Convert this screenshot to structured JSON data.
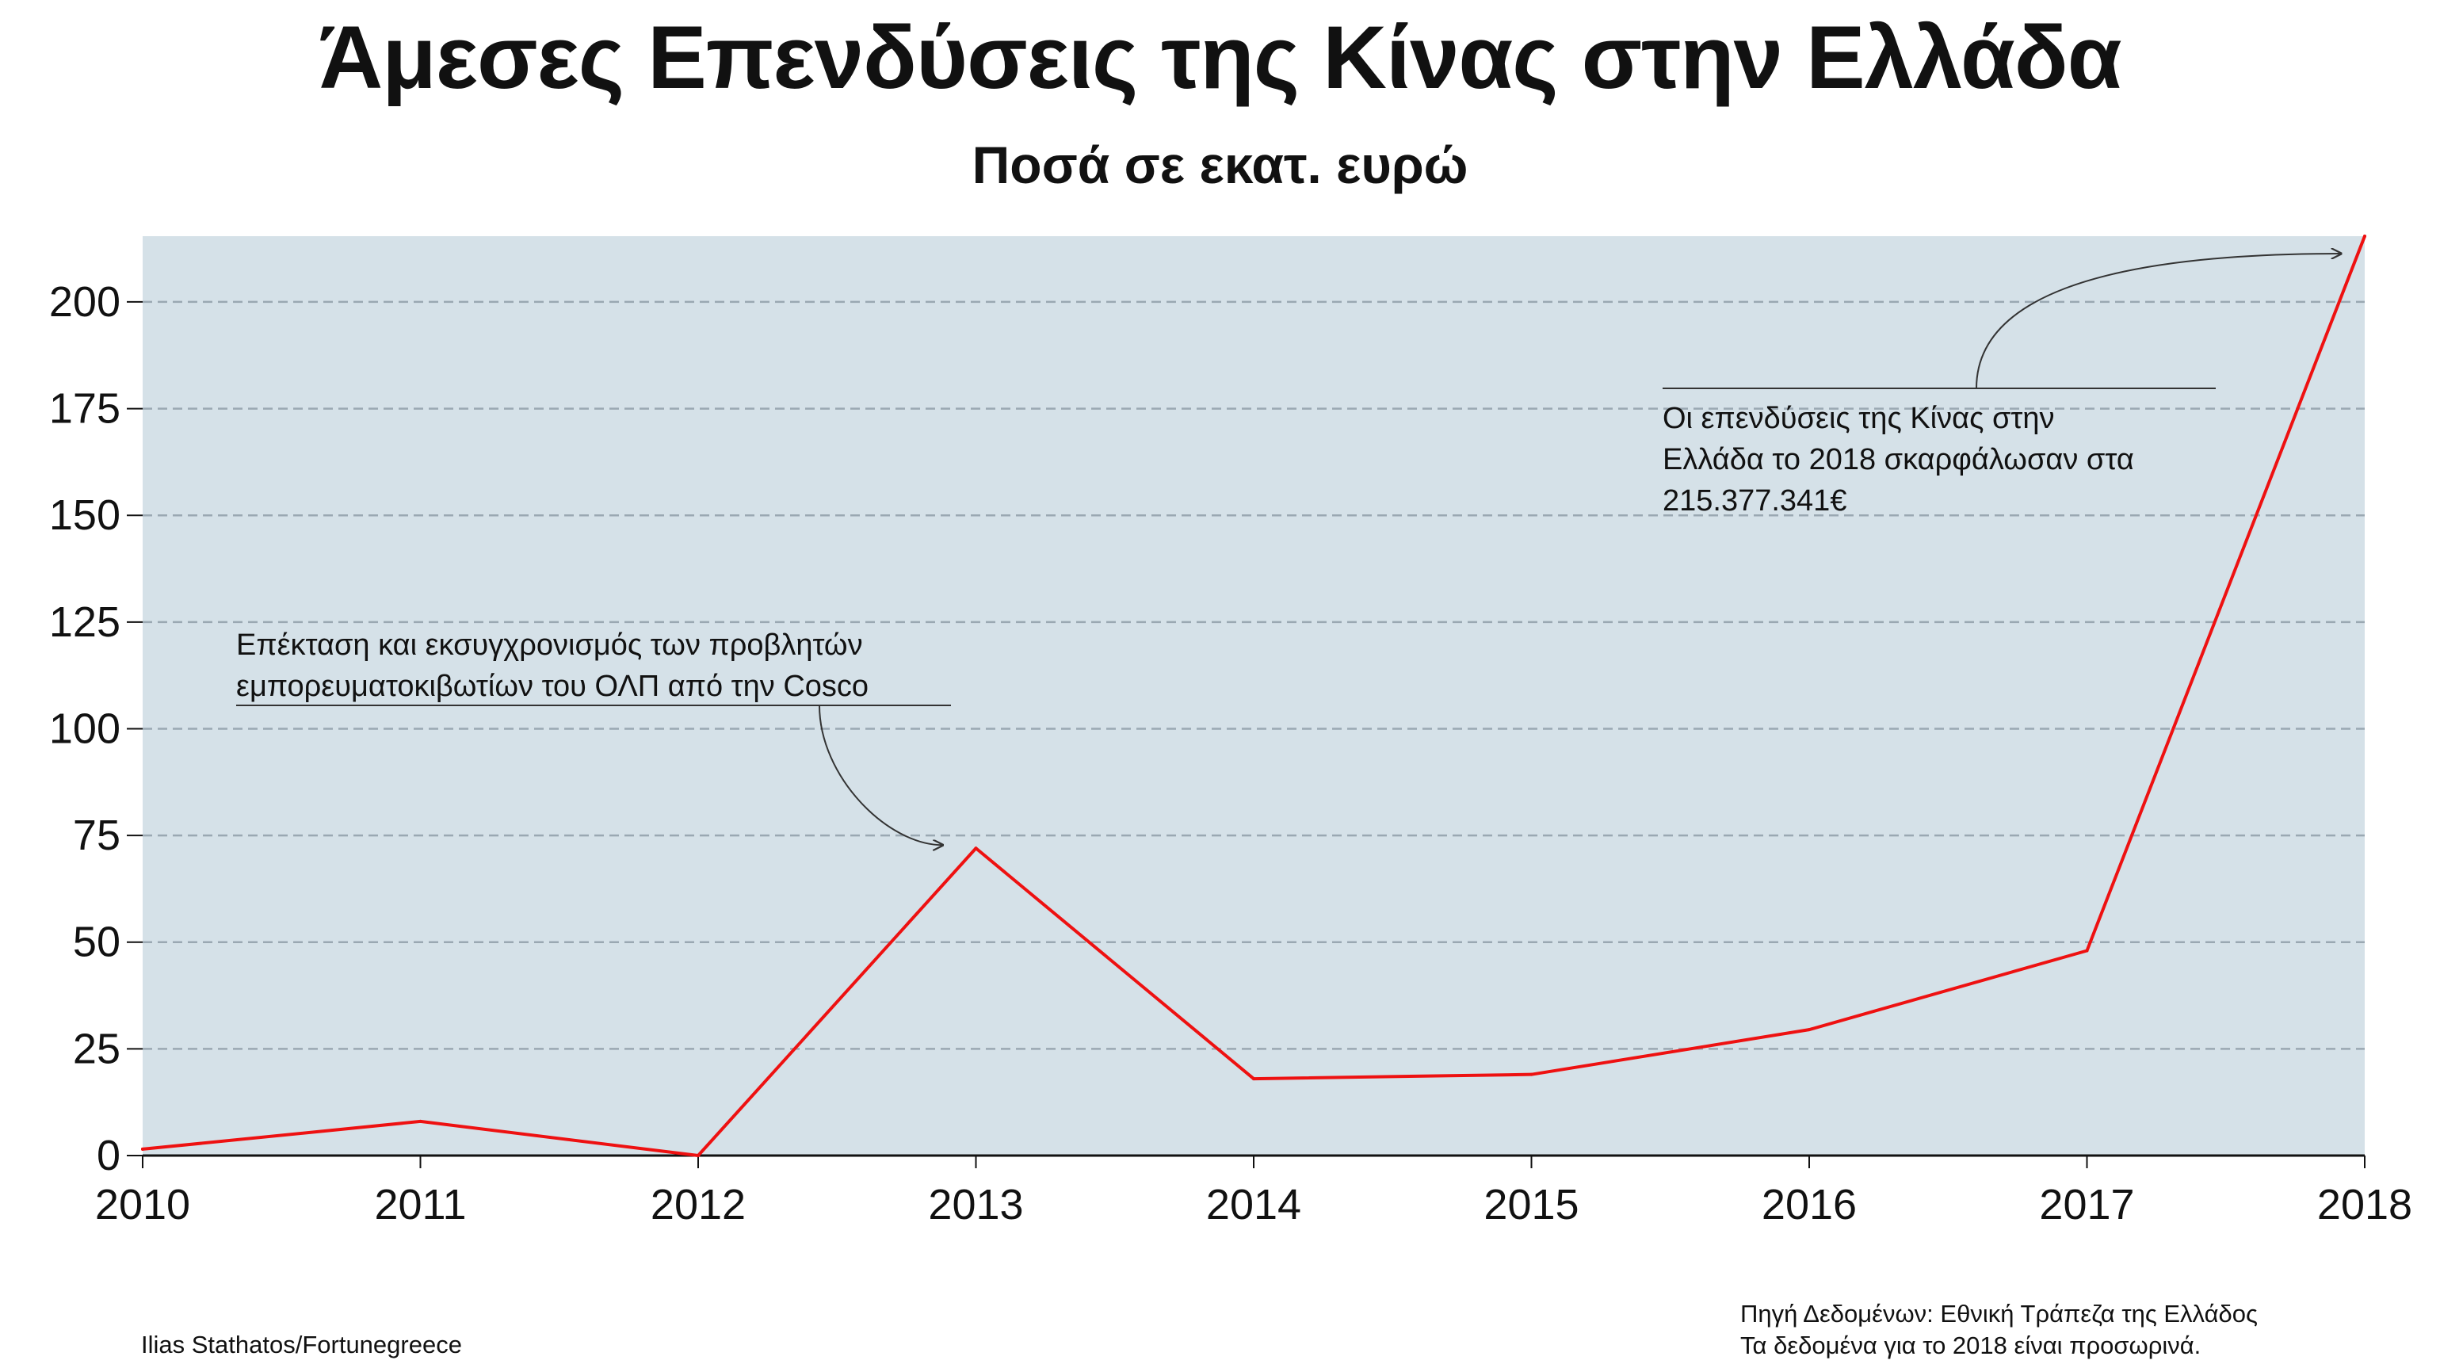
{
  "title": "Άμεσες Επενδύσεις της Κίνας στην Ελλάδα",
  "subtitle": "Ποσά σε εκατ. ευρώ",
  "chart_data": {
    "type": "line",
    "x": [
      2010,
      2011,
      2012,
      2013,
      2014,
      2015,
      2016,
      2017,
      2018
    ],
    "series": [
      {
        "values": [
          1.5,
          8,
          0,
          72,
          18,
          19,
          29.5,
          48,
          215.4
        ],
        "color": "#ee1111"
      }
    ],
    "ylim": [
      0,
      215.4
    ],
    "xlim": [
      2010,
      2018
    ],
    "yticks": [
      "0",
      "25",
      "50",
      "75",
      "100",
      "125",
      "150",
      "175",
      "200"
    ],
    "xticks": [
      "2010",
      "2011",
      "2012",
      "2013",
      "2014",
      "2015",
      "2016",
      "2017",
      "2018"
    ],
    "grid": "horizontal dashed",
    "background": "#d5e1e8",
    "annotations": [
      {
        "lines": [
          "Επέκταση και εκσυγχρονισμός των προβλητών",
          "εμπορευματοκιβωτίων του ΟΛΠ από την Cosco"
        ],
        "x": 2013,
        "y": 72
      },
      {
        "lines": [
          "Οι επενδύσεις της Κίνας στην",
          "Ελλάδα το 2018 σκαρφάλωσαν στα",
          "215.377.341€"
        ],
        "x": 2018,
        "y": 215.4
      }
    ]
  },
  "footer": {
    "credit": "Ilias Stathatos/Fortunegreece",
    "source": "Πηγή Δεδομένων: Εθνική Τράπεζα της Ελλάδος",
    "note": "Τα δεδομένα για το 2018 είναι προσωρινά."
  }
}
